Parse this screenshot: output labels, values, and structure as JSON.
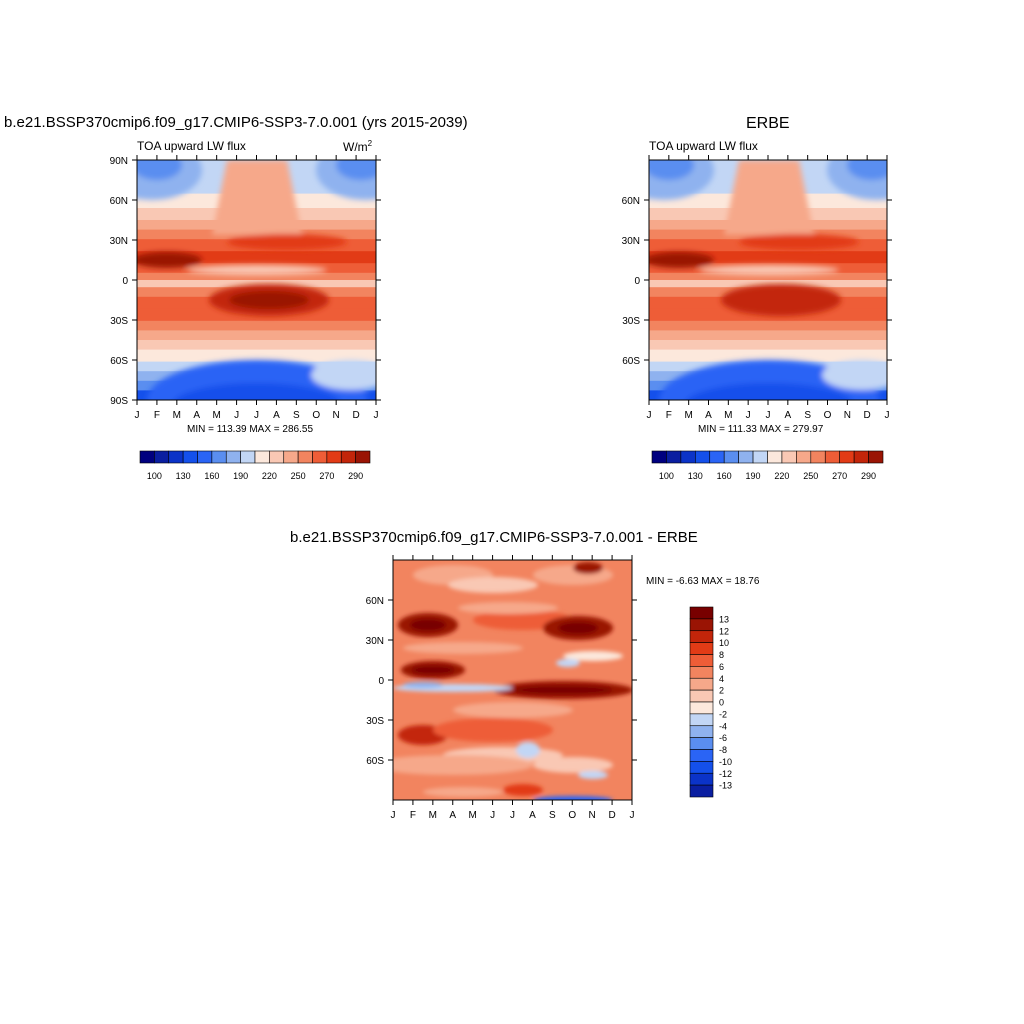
{
  "panels": {
    "model": {
      "title": "b.e21.BSSP370cmip6.f09_g17.CMIP6-SSP3-7.0.001 (yrs 2015-2039)",
      "left_label": "TOA upward LW flux",
      "right_label": "W/m",
      "right_label_sup": "2",
      "minmax": "MIN = 113.39 MAX = 286.55"
    },
    "obs": {
      "title": "ERBE",
      "left_label": "TOA upward LW flux",
      "minmax": "MIN = 111.33 MAX = 279.97"
    },
    "diff": {
      "title": "b.e21.BSSP370cmip6.f09_g17.CMIP6-SSP3-7.0.001 - ERBE",
      "minmax": "MIN =  -6.63 MAX =  18.76"
    }
  },
  "colors": {
    "scale": [
      "#00007f",
      "#0a1ea0",
      "#0b33c8",
      "#1450eb",
      "#2a64f5",
      "#5a8ef0",
      "#8fb2ef",
      "#c2d6f5",
      "#fce8dc",
      "#f9c8b4",
      "#f6a88a",
      "#f2845f",
      "#ee5d37",
      "#e23b16",
      "#c3250a",
      "#9a1404",
      "#780000"
    ]
  },
  "chart_data": [
    {
      "type": "heatmap",
      "name": "model",
      "x": [
        "J",
        "F",
        "M",
        "A",
        "M",
        "J",
        "J",
        "A",
        "S",
        "O",
        "N",
        "D",
        "J"
      ],
      "y_ticks": [
        "90N",
        "60N",
        "30N",
        "0",
        "30S",
        "60S",
        "90S"
      ],
      "colorbar_labels": [
        "100",
        "130",
        "160",
        "190",
        "220",
        "250",
        "270",
        "290"
      ],
      "min": 113.39,
      "max": 286.55
    },
    {
      "type": "heatmap",
      "name": "obs",
      "x": [
        "J",
        "F",
        "M",
        "A",
        "M",
        "J",
        "J",
        "A",
        "S",
        "O",
        "N",
        "D",
        "J"
      ],
      "y_ticks": [
        "60N",
        "30N",
        "0",
        "30S",
        "60S"
      ],
      "colorbar_labels": [
        "100",
        "130",
        "160",
        "190",
        "220",
        "250",
        "270",
        "290"
      ],
      "min": 111.33,
      "max": 279.97
    },
    {
      "type": "heatmap",
      "name": "diff",
      "x": [
        "J",
        "F",
        "M",
        "A",
        "M",
        "J",
        "J",
        "A",
        "S",
        "O",
        "N",
        "D",
        "J"
      ],
      "y_ticks": [
        "60N",
        "30N",
        "0",
        "30S",
        "60S"
      ],
      "colorbar_labels": [
        "13",
        "12",
        "10",
        "8",
        "6",
        "4",
        "2",
        "0",
        "-2",
        "-4",
        "-6",
        "-8",
        "-10",
        "-12",
        "-13"
      ],
      "min": -6.63,
      "max": 18.76
    }
  ]
}
